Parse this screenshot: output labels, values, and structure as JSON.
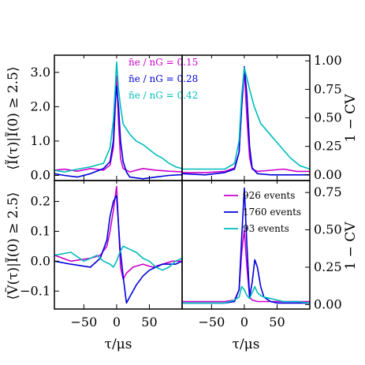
{
  "chart_data": [
    {
      "type": "line",
      "panel": "top-left",
      "ylabel": "⟨Ĩ(τ)|Ĩ(0) ≥ 2.5⟩",
      "xlim": [
        -95,
        100
      ],
      "ylim": [
        -0.15,
        3.5
      ],
      "yticks": [
        0.0,
        1.0,
        2.0,
        3.0
      ],
      "ytick_labels": [
        "0.0",
        "1.0",
        "2.0",
        "3.0"
      ],
      "legend": [
        {
          "text": "n̄e / nG = 0.15",
          "color": "#cc00cc"
        },
        {
          "text": "n̄e / nG = 0.28",
          "color": "#0000dd"
        },
        {
          "text": "n̄e / nG = 0.42",
          "color": "#00bbbb"
        }
      ],
      "series": [
        {
          "color": "#cc00cc",
          "x": [
            -95,
            -80,
            -60,
            -40,
            -20,
            -10,
            -5,
            -2,
            0,
            3,
            6,
            10,
            20,
            40,
            60,
            80,
            100
          ],
          "y": [
            0.15,
            0.18,
            0.12,
            0.2,
            0.15,
            0.3,
            0.8,
            2.0,
            2.9,
            1.5,
            0.5,
            0.2,
            0.1,
            0.2,
            0.15,
            0.12,
            0.1
          ]
        },
        {
          "color": "#0000dd",
          "x": [
            -95,
            -80,
            -60,
            -40,
            -20,
            -10,
            -5,
            -2,
            0,
            3,
            6,
            10,
            15,
            20,
            40,
            60,
            80,
            100
          ],
          "y": [
            0.05,
            0.0,
            -0.05,
            0.05,
            0.2,
            0.4,
            1.0,
            2.2,
            2.6,
            2.0,
            1.0,
            0.4,
            0.1,
            -0.05,
            -0.1,
            -0.05,
            0.0,
            0.02
          ]
        },
        {
          "color": "#00bbbb",
          "x": [
            -95,
            -80,
            -60,
            -40,
            -30,
            -20,
            -10,
            -5,
            -2,
            0,
            3,
            6,
            10,
            20,
            30,
            40,
            50,
            60,
            70,
            80,
            90,
            100
          ],
          "y": [
            0.15,
            0.1,
            0.18,
            0.25,
            0.3,
            0.35,
            0.8,
            1.6,
            2.6,
            3.3,
            2.5,
            2.0,
            1.5,
            1.2,
            1.0,
            0.9,
            0.75,
            0.6,
            0.5,
            0.35,
            0.25,
            0.2
          ]
        }
      ]
    },
    {
      "type": "line",
      "panel": "top-right",
      "ylabel": "1 − CV",
      "xlim": [
        -95,
        100
      ],
      "ylim": [
        -0.05,
        1.05
      ],
      "yticks": [
        0.0,
        0.25,
        0.5,
        0.75,
        1.0
      ],
      "ytick_labels": [
        "0.00",
        "0.25",
        "0.50",
        "0.75",
        "1.00"
      ],
      "series": [
        {
          "color": "#cc00cc",
          "x": [
            -95,
            -60,
            -30,
            -15,
            -8,
            -4,
            0,
            4,
            8,
            12,
            20,
            40,
            60,
            80,
            100
          ],
          "y": [
            0.02,
            0.02,
            0.03,
            0.06,
            0.2,
            0.6,
            0.92,
            0.5,
            0.15,
            0.05,
            0.03,
            0.04,
            0.05,
            0.03,
            0.03
          ]
        },
        {
          "color": "#0000dd",
          "x": [
            -95,
            -60,
            -30,
            -15,
            -8,
            -4,
            0,
            4,
            8,
            12,
            20,
            40,
            60,
            80,
            100
          ],
          "y": [
            0.01,
            0.0,
            0.02,
            0.05,
            0.2,
            0.6,
            0.95,
            0.7,
            0.25,
            0.06,
            0.01,
            0.0,
            0.0,
            0.0,
            0.0
          ]
        },
        {
          "color": "#00bbbb",
          "x": [
            -95,
            -60,
            -30,
            -15,
            -8,
            -4,
            0,
            4,
            8,
            15,
            25,
            40,
            55,
            70,
            85,
            100
          ],
          "y": [
            0.05,
            0.05,
            0.05,
            0.1,
            0.3,
            0.7,
            0.94,
            0.85,
            0.75,
            0.6,
            0.45,
            0.35,
            0.25,
            0.15,
            0.08,
            0.05
          ]
        }
      ]
    },
    {
      "type": "line",
      "panel": "bottom-left",
      "xlabel": "τ/μs",
      "ylabel": "⟨Ṽ(τ)|Ĩ(0) ≥ 2.5⟩",
      "xlim": [
        -95,
        100
      ],
      "ylim": [
        -0.16,
        0.27
      ],
      "xticks": [
        -50,
        0,
        50
      ],
      "xtick_labels": [
        "−50",
        "0",
        "50"
      ],
      "yticks": [
        -0.1,
        0.0,
        0.1,
        0.2
      ],
      "ytick_labels": [
        "−0.1",
        "0.0",
        "0.1",
        "0.2"
      ],
      "series": [
        {
          "color": "#cc00cc",
          "x": [
            -95,
            -70,
            -40,
            -25,
            -15,
            -10,
            -5,
            -2,
            0,
            3,
            6,
            10,
            15,
            25,
            40,
            55,
            70,
            85,
            100
          ],
          "y": [
            0.02,
            0.0,
            0.01,
            0.02,
            0.05,
            0.1,
            0.17,
            0.22,
            0.25,
            0.12,
            -0.02,
            -0.06,
            -0.04,
            -0.02,
            -0.01,
            -0.02,
            -0.01,
            0.0,
            0.0
          ]
        },
        {
          "color": "#0000dd",
          "x": [
            -95,
            -70,
            -40,
            -25,
            -15,
            -10,
            -5,
            0,
            5,
            10,
            15,
            20,
            30,
            40,
            50,
            60,
            70,
            80,
            90,
            100
          ],
          "y": [
            0.0,
            -0.01,
            -0.02,
            0.01,
            0.07,
            0.15,
            0.2,
            0.22,
            0.05,
            -0.05,
            -0.14,
            -0.12,
            -0.08,
            -0.05,
            -0.03,
            -0.02,
            -0.01,
            -0.01,
            -0.01,
            0.0
          ]
        },
        {
          "color": "#00bbbb",
          "x": [
            -95,
            -70,
            -50,
            -40,
            -30,
            -20,
            -10,
            -5,
            0,
            5,
            10,
            20,
            30,
            40,
            50,
            60,
            70,
            80,
            90,
            100
          ],
          "y": [
            0.02,
            0.03,
            0.0,
            0.01,
            0.02,
            0.0,
            -0.01,
            -0.02,
            0.0,
            0.03,
            0.05,
            0.04,
            0.03,
            0.01,
            0.0,
            -0.02,
            -0.03,
            -0.02,
            0.0,
            0.01
          ]
        }
      ]
    },
    {
      "type": "line",
      "panel": "bottom-right",
      "xlabel": "τ/μs",
      "ylabel": "1 − CV",
      "xlim": [
        -95,
        100
      ],
      "ylim": [
        -0.03,
        0.83
      ],
      "xticks": [
        -50,
        0,
        50
      ],
      "xtick_labels": [
        "−50",
        "0",
        "50"
      ],
      "yticks": [
        0.0,
        0.25,
        0.5,
        0.75
      ],
      "ytick_labels": [
        "0.00",
        "0.25",
        "0.50",
        "0.75"
      ],
      "legend": [
        {
          "text": "926 events",
          "color": "#cc00cc"
        },
        {
          "text": "1760 events",
          "color": "#0000dd"
        },
        {
          "text": "93 events",
          "color": "#00bbbb"
        }
      ],
      "series": [
        {
          "color": "#cc00cc",
          "x": [
            -95,
            -60,
            -30,
            -15,
            -8,
            -4,
            0,
            4,
            8,
            12,
            20,
            40,
            60,
            80,
            100
          ],
          "y": [
            0.02,
            0.02,
            0.02,
            0.03,
            0.1,
            0.35,
            0.5,
            0.25,
            0.05,
            0.03,
            0.02,
            0.02,
            0.02,
            0.02,
            0.02
          ]
        },
        {
          "color": "#0000dd",
          "x": [
            -95,
            -60,
            -30,
            -15,
            -8,
            -4,
            0,
            4,
            8,
            12,
            16,
            20,
            25,
            30,
            40,
            50,
            60,
            80,
            100
          ],
          "y": [
            0.01,
            0.01,
            0.01,
            0.02,
            0.1,
            0.45,
            0.78,
            0.4,
            0.05,
            0.15,
            0.3,
            0.25,
            0.12,
            0.05,
            0.02,
            0.01,
            0.01,
            0.01,
            0.01
          ]
        },
        {
          "color": "#00bbbb",
          "x": [
            -95,
            -60,
            -30,
            -15,
            -8,
            -4,
            0,
            4,
            8,
            12,
            16,
            20,
            25,
            30,
            40,
            50,
            60,
            80,
            100
          ],
          "y": [
            0.01,
            0.01,
            0.01,
            0.03,
            0.05,
            0.12,
            0.1,
            0.06,
            0.04,
            0.08,
            0.12,
            0.08,
            0.06,
            0.05,
            0.04,
            0.03,
            0.02,
            0.02,
            0.01
          ]
        }
      ]
    }
  ]
}
